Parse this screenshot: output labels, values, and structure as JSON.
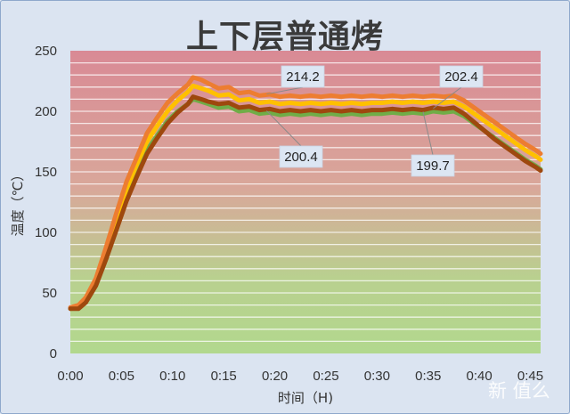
{
  "chart_data": {
    "type": "line",
    "title": "上下层普通烤",
    "xlabel": "时间（H)",
    "ylabel": "温度（℃）",
    "ylim": [
      0,
      250
    ],
    "y_ticks": [
      "0",
      "50",
      "100",
      "150",
      "200",
      "250"
    ],
    "x_ticks": [
      "0:00",
      "0:05",
      "0:10",
      "0:15",
      "0:20",
      "0:25",
      "0:30",
      "0:35",
      "0:40",
      "0:45"
    ],
    "x_range_minutes": [
      0,
      46
    ],
    "grid": true,
    "legend": "none",
    "series": [
      {
        "color": "#70ad47",
        "points": [
          [
            0,
            37
          ],
          [
            0.8,
            39
          ],
          [
            1.5,
            44
          ],
          [
            2.5,
            58
          ],
          [
            3.5,
            80
          ],
          [
            4.5,
            105
          ],
          [
            5.5,
            130
          ],
          [
            6.5,
            150
          ],
          [
            7.5,
            168
          ],
          [
            8.5,
            180
          ],
          [
            9.5,
            192
          ],
          [
            10.5,
            200
          ],
          [
            11.5,
            206
          ],
          [
            12,
            210
          ],
          [
            12.8,
            208
          ],
          [
            13.5,
            206
          ],
          [
            14.5,
            203
          ],
          [
            15.5,
            204
          ],
          [
            16.5,
            200
          ],
          [
            17.5,
            201
          ],
          [
            18.5,
            198
          ],
          [
            19.5,
            199
          ],
          [
            20.5,
            197
          ],
          [
            21.5,
            198
          ],
          [
            22.5,
            197
          ],
          [
            23.5,
            198
          ],
          [
            24.5,
            197
          ],
          [
            25.5,
            198
          ],
          [
            26.5,
            197
          ],
          [
            27.5,
            198
          ],
          [
            28.5,
            197
          ],
          [
            29.5,
            198
          ],
          [
            30.5,
            198
          ],
          [
            31.5,
            199
          ],
          [
            32.5,
            198
          ],
          [
            33.5,
            199
          ],
          [
            34.5,
            198
          ],
          [
            35.5,
            200
          ],
          [
            36.5,
            199
          ],
          [
            37.5,
            200
          ],
          [
            38.5,
            196
          ],
          [
            39.5,
            190
          ],
          [
            40.5,
            184
          ],
          [
            41.5,
            178
          ],
          [
            42.5,
            172
          ],
          [
            43.5,
            166
          ],
          [
            44.5,
            160
          ],
          [
            45.5,
            155
          ],
          [
            46,
            152
          ]
        ]
      },
      {
        "color": "#ffc000",
        "points": [
          [
            0,
            37
          ],
          [
            0.8,
            39
          ],
          [
            1.5,
            45
          ],
          [
            2.5,
            60
          ],
          [
            3.5,
            84
          ],
          [
            4.5,
            110
          ],
          [
            5.5,
            136
          ],
          [
            6.5,
            156
          ],
          [
            7.5,
            175
          ],
          [
            8.5,
            188
          ],
          [
            9.5,
            200
          ],
          [
            10.5,
            209
          ],
          [
            11.5,
            216
          ],
          [
            12,
            221
          ],
          [
            12.8,
            219
          ],
          [
            13.5,
            217
          ],
          [
            14.5,
            213
          ],
          [
            15.5,
            214
          ],
          [
            16.5,
            209
          ],
          [
            17.5,
            210
          ],
          [
            18.5,
            207
          ],
          [
            19.5,
            208
          ],
          [
            20.5,
            206
          ],
          [
            21.5,
            207
          ],
          [
            22.5,
            206
          ],
          [
            23.5,
            207
          ],
          [
            24.5,
            206
          ],
          [
            25.5,
            207
          ],
          [
            26.5,
            206
          ],
          [
            27.5,
            207
          ],
          [
            28.5,
            206
          ],
          [
            29.5,
            207
          ],
          [
            30.5,
            207
          ],
          [
            31.5,
            208
          ],
          [
            32.5,
            207
          ],
          [
            33.5,
            208
          ],
          [
            34.5,
            207
          ],
          [
            35.5,
            208
          ],
          [
            36.5,
            207
          ],
          [
            37.5,
            208
          ],
          [
            38.5,
            204
          ],
          [
            39.5,
            198
          ],
          [
            40.5,
            192
          ],
          [
            41.5,
            186
          ],
          [
            42.5,
            180
          ],
          [
            43.5,
            174
          ],
          [
            44.5,
            168
          ],
          [
            45.5,
            163
          ],
          [
            46,
            160
          ]
        ]
      },
      {
        "color": "#ed7d31",
        "points": [
          [
            0,
            38
          ],
          [
            0.8,
            40
          ],
          [
            1.5,
            46
          ],
          [
            2.5,
            62
          ],
          [
            3.5,
            88
          ],
          [
            4.5,
            116
          ],
          [
            5.5,
            142
          ],
          [
            6.5,
            162
          ],
          [
            7.5,
            182
          ],
          [
            8.5,
            195
          ],
          [
            9.5,
            207
          ],
          [
            10.5,
            215
          ],
          [
            11.5,
            222
          ],
          [
            12,
            228
          ],
          [
            12.8,
            226
          ],
          [
            13.5,
            223
          ],
          [
            14.5,
            219
          ],
          [
            15.5,
            220
          ],
          [
            16.5,
            215
          ],
          [
            17.5,
            216
          ],
          [
            18.5,
            213
          ],
          [
            19.5,
            214
          ],
          [
            20.5,
            212
          ],
          [
            21.5,
            213
          ],
          [
            22.5,
            212
          ],
          [
            23.5,
            213
          ],
          [
            24.5,
            212
          ],
          [
            25.5,
            213
          ],
          [
            26.5,
            212
          ],
          [
            27.5,
            213
          ],
          [
            28.5,
            212
          ],
          [
            29.5,
            213
          ],
          [
            30.5,
            212
          ],
          [
            31.5,
            213
          ],
          [
            32.5,
            212
          ],
          [
            33.5,
            213
          ],
          [
            34.5,
            212
          ],
          [
            35.5,
            213
          ],
          [
            36.5,
            212
          ],
          [
            37.5,
            213
          ],
          [
            38.5,
            209
          ],
          [
            39.5,
            203
          ],
          [
            40.5,
            197
          ],
          [
            41.5,
            191
          ],
          [
            42.5,
            185
          ],
          [
            43.5,
            179
          ],
          [
            44.5,
            173
          ],
          [
            45.5,
            168
          ],
          [
            46,
            165
          ]
        ]
      },
      {
        "color": "#9e480e",
        "points": [
          [
            0,
            37
          ],
          [
            0.8,
            37
          ],
          [
            1.5,
            42
          ],
          [
            2.5,
            56
          ],
          [
            3.5,
            78
          ],
          [
            4.5,
            102
          ],
          [
            5.5,
            126
          ],
          [
            6.5,
            146
          ],
          [
            7.5,
            165
          ],
          [
            8.5,
            178
          ],
          [
            9.5,
            190
          ],
          [
            10.5,
            199
          ],
          [
            11.5,
            206
          ],
          [
            12,
            212
          ],
          [
            12.8,
            210
          ],
          [
            13.5,
            208
          ],
          [
            14.5,
            206
          ],
          [
            15.5,
            207
          ],
          [
            16.5,
            203
          ],
          [
            17.5,
            204
          ],
          [
            18.5,
            201
          ],
          [
            19.5,
            202
          ],
          [
            20.5,
            200
          ],
          [
            21.5,
            201
          ],
          [
            22.5,
            200
          ],
          [
            23.5,
            201
          ],
          [
            24.5,
            200
          ],
          [
            25.5,
            201
          ],
          [
            26.5,
            200
          ],
          [
            27.5,
            201
          ],
          [
            28.5,
            200
          ],
          [
            29.5,
            201
          ],
          [
            30.5,
            201
          ],
          [
            31.5,
            202
          ],
          [
            32.5,
            201
          ],
          [
            33.5,
            202
          ],
          [
            34.5,
            201
          ],
          [
            35.5,
            203
          ],
          [
            36.5,
            202
          ],
          [
            37.5,
            203
          ],
          [
            38.5,
            198
          ],
          [
            39.5,
            191
          ],
          [
            40.5,
            184
          ],
          [
            41.5,
            177
          ],
          [
            42.5,
            171
          ],
          [
            43.5,
            165
          ],
          [
            44.5,
            159
          ],
          [
            45.5,
            154
          ],
          [
            46,
            151
          ]
        ]
      }
    ],
    "annotations": [
      {
        "text": "214.2",
        "x": 19.2,
        "y": 214.2
      },
      {
        "text": "200.4",
        "x": 19.2,
        "y": 200.4
      },
      {
        "text": "199.7",
        "x": 34.5,
        "y": 199.7
      },
      {
        "text": "202.4",
        "x": 35.5,
        "y": 202.4
      }
    ]
  },
  "watermark": "新 值么"
}
